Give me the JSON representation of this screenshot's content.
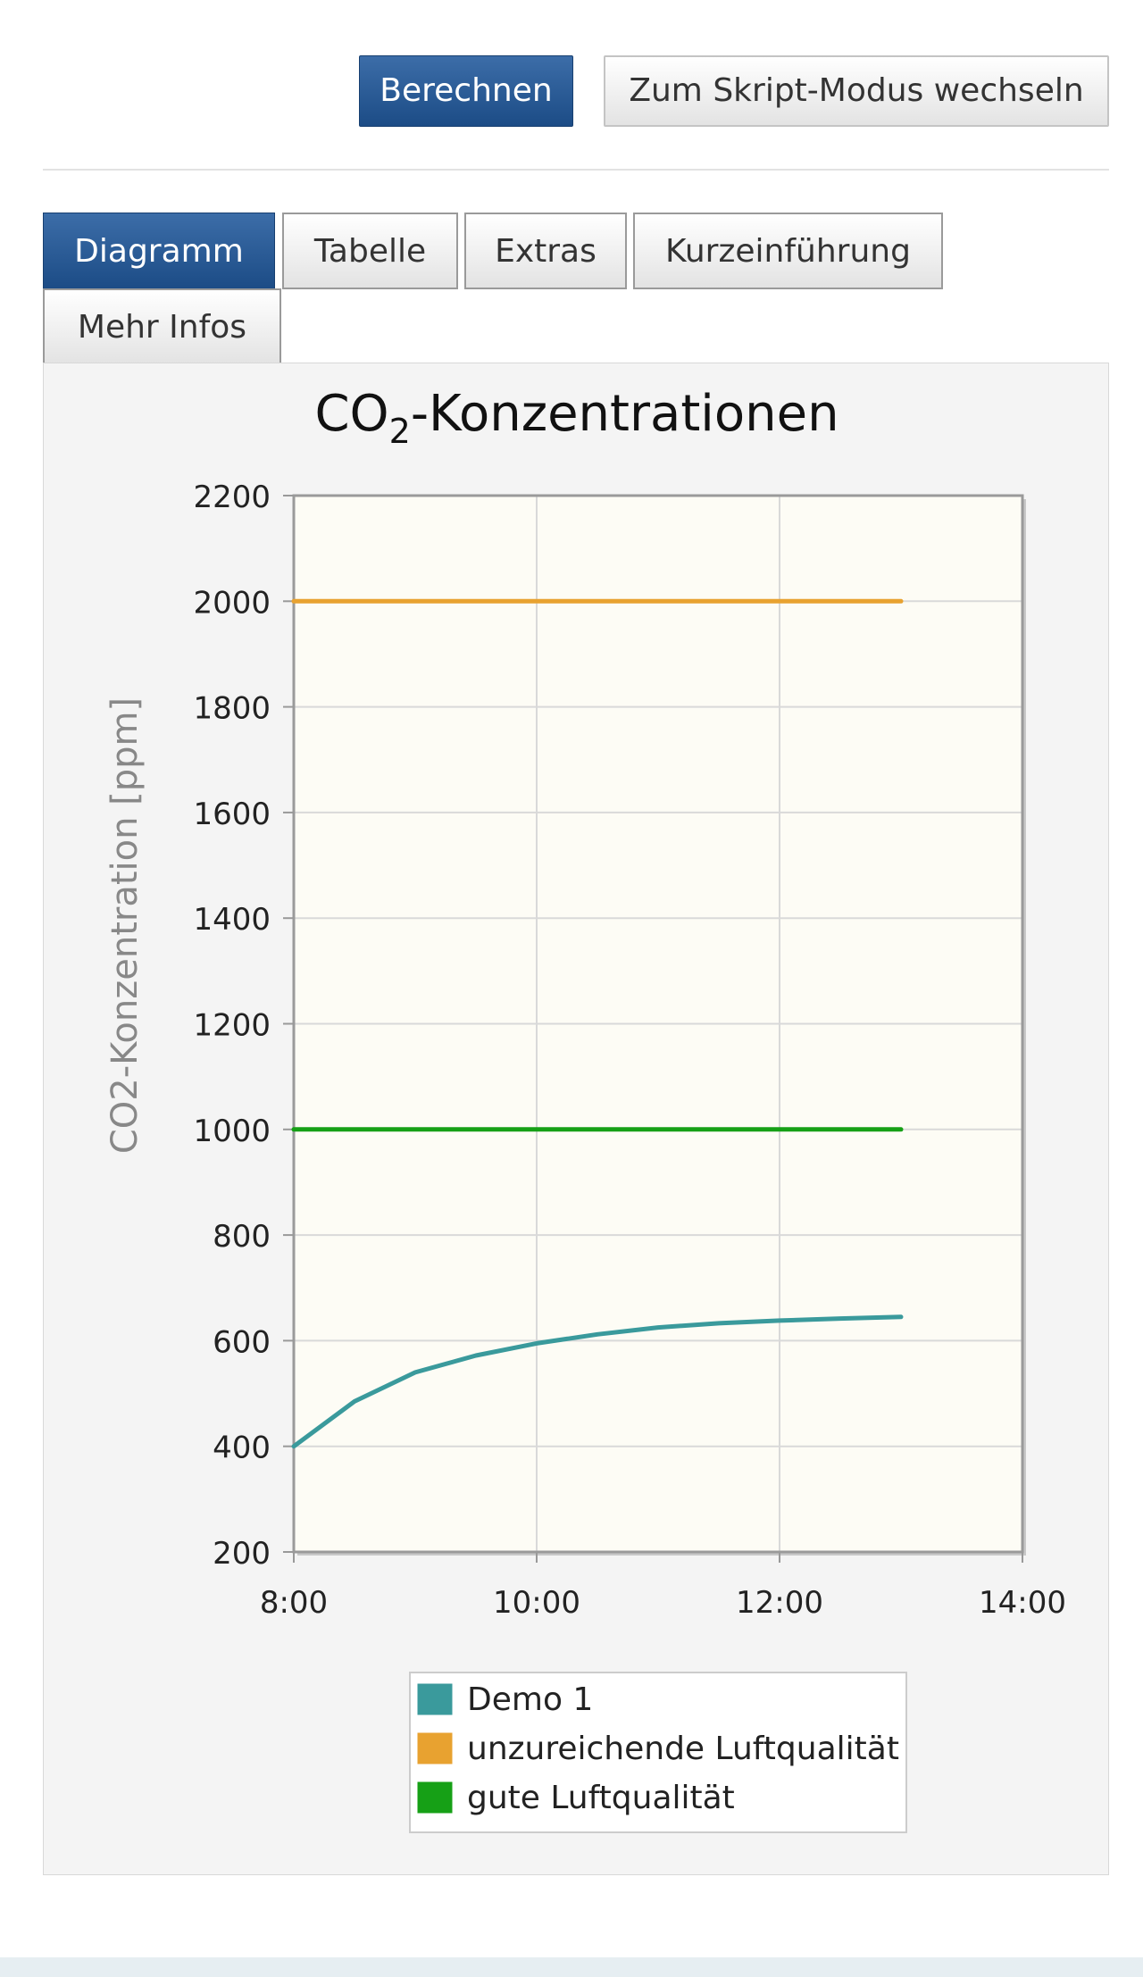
{
  "toolbar": {
    "calculate_label": "Berechnen",
    "script_mode_label": "Zum Skript-Modus wechseln"
  },
  "tabs": [
    {
      "label": "Diagramm",
      "active": true
    },
    {
      "label": "Tabelle",
      "active": false
    },
    {
      "label": "Extras",
      "active": false
    },
    {
      "label": "Kurzeinführung",
      "active": false
    },
    {
      "label": "Mehr Infos",
      "active": false
    }
  ],
  "chart_data": {
    "type": "line",
    "title_main": "CO",
    "title_sub": "2",
    "title_rest": "-Konzentrationen",
    "xlabel": "",
    "ylabel": "CO2-Konzentration [ppm]",
    "x_ticks": [
      "8:00",
      "10:00",
      "12:00",
      "14:00"
    ],
    "y_ticks": [
      200,
      400,
      600,
      800,
      1000,
      1200,
      1400,
      1600,
      1800,
      2000,
      2200
    ],
    "xlim": [
      "8:00",
      "14:00"
    ],
    "ylim": [
      200,
      2200
    ],
    "grid": true,
    "legend_position": "bottom-center",
    "series": [
      {
        "name": "Demo 1",
        "color": "#3a9a9c",
        "x": [
          "8:00",
          "8:30",
          "9:00",
          "9:30",
          "10:00",
          "10:30",
          "11:00",
          "11:30",
          "12:00",
          "12:30",
          "13:00"
        ],
        "y": [
          400,
          485,
          540,
          572,
          595,
          612,
          625,
          633,
          638,
          642,
          645
        ]
      },
      {
        "name": "unzureichende Luftqualität",
        "color": "#e8a230",
        "x": [
          "8:00",
          "13:00"
        ],
        "y": [
          2000,
          2000
        ]
      },
      {
        "name": "gute Luftqualität",
        "color": "#16a016",
        "x": [
          "8:00",
          "13:00"
        ],
        "y": [
          1000,
          1000
        ]
      }
    ]
  }
}
